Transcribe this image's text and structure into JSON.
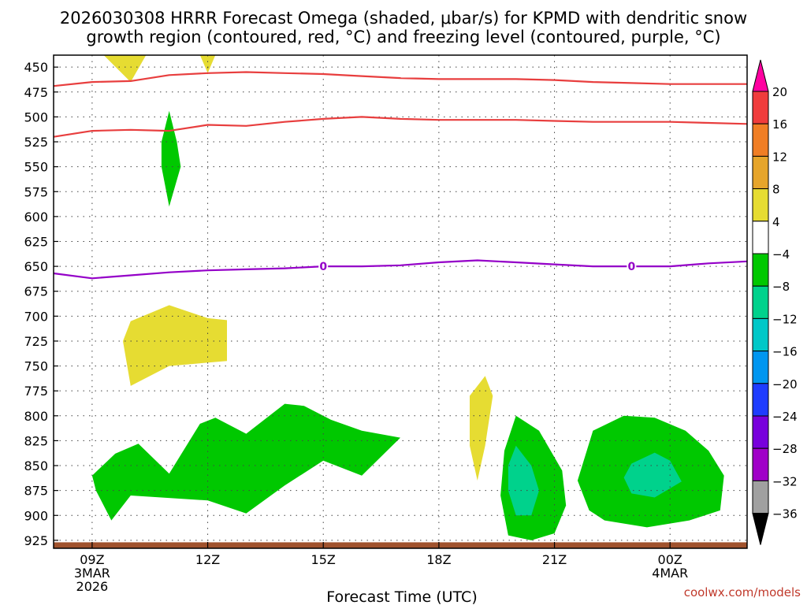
{
  "chart_data": {
    "type": "heatmap",
    "title_line1": "2026030308 HRRR Forecast Omega (shaded, μbar/s) for KPMD with dendritic snow",
    "title_line2": "growth region (contoured, red, °C) and freezing level (contoured, purple, °C)",
    "xlabel": "Forecast Time (UTC)",
    "credit": "coolwx.com/models",
    "xlim": [
      8.0,
      26.0
    ],
    "ylim": [
      438,
      933
    ],
    "x_ticks": [
      {
        "x": 9,
        "lines": [
          "09Z",
          "3MAR",
          "2026"
        ]
      },
      {
        "x": 12,
        "lines": [
          "12Z"
        ]
      },
      {
        "x": 15,
        "lines": [
          "15Z"
        ]
      },
      {
        "x": 18,
        "lines": [
          "18Z"
        ]
      },
      {
        "x": 21,
        "lines": [
          "21Z"
        ]
      },
      {
        "x": 24,
        "lines": [
          "00Z",
          "4MAR"
        ]
      }
    ],
    "y_ticks": [
      450,
      475,
      500,
      525,
      550,
      575,
      600,
      625,
      650,
      675,
      700,
      725,
      750,
      775,
      800,
      825,
      850,
      875,
      900,
      925
    ],
    "colorbar": {
      "labels": [
        "20",
        "16",
        "12",
        "8",
        "4",
        "−4",
        "−8",
        "−12",
        "−16",
        "−20",
        "−24",
        "−28",
        "−32",
        "−36"
      ],
      "colors": [
        "#ff00a0",
        "#f03c3c",
        "#f07e25",
        "#e6a52b",
        "#e6dc32",
        "#ffffff",
        "#00c800",
        "#00d28c",
        "#00c8c8",
        "#0096f0",
        "#1e3cff",
        "#7800dc",
        "#a000c8",
        "#a0a0a0",
        "#000000"
      ]
    },
    "series": [
      {
        "name": "dendritic-upper-red",
        "color": "#e83e3e",
        "x": [
          8.0,
          9.0,
          10.0,
          11.0,
          12.0,
          13.0,
          14.0,
          15.0,
          16.0,
          17.0,
          18.0,
          19.0,
          20.0,
          21.0,
          22.0,
          23.0,
          24.0,
          25.0,
          26.0
        ],
        "y": [
          469,
          465,
          464,
          458,
          456,
          455,
          456,
          457,
          459,
          461,
          462,
          462,
          462,
          463,
          465,
          466,
          467,
          467,
          467
        ]
      },
      {
        "name": "dendritic-lower-red",
        "color": "#e83e3e",
        "x": [
          8.0,
          9.0,
          10.0,
          11.0,
          12.0,
          13.0,
          14.0,
          15.0,
          16.0,
          17.0,
          18.0,
          19.0,
          20.0,
          21.0,
          22.0,
          23.0,
          24.0,
          25.0,
          26.0
        ],
        "y": [
          520,
          514,
          513,
          514,
          508,
          509,
          505,
          502,
          500,
          502,
          503,
          503,
          503,
          504,
          505,
          505,
          505,
          506,
          507
        ]
      },
      {
        "name": "freezing-level-purple",
        "color": "#9400c8",
        "x": [
          8.0,
          9.0,
          10.0,
          11.0,
          12.0,
          13.0,
          14.0,
          15.0,
          16.0,
          17.0,
          18.0,
          19.0,
          20.0,
          21.0,
          22.0,
          23.0,
          24.0,
          25.0,
          26.0
        ],
        "y": [
          657,
          662,
          659,
          656,
          654,
          653,
          652,
          650,
          650,
          649,
          646,
          644,
          646,
          648,
          650,
          650,
          650,
          647,
          645
        ],
        "contour_label": "0",
        "label_x": [
          15.0,
          23.0
        ]
      }
    ],
    "regions": [
      {
        "name": "omega-yellow-top-1",
        "level": "4",
        "color": "#e6dc32",
        "points": [
          [
            9.3,
            438
          ],
          [
            10.0,
            465
          ],
          [
            10.4,
            438
          ]
        ]
      },
      {
        "name": "omega-yellow-top-2",
        "level": "4",
        "color": "#e6dc32",
        "points": [
          [
            11.8,
            438
          ],
          [
            12.0,
            456
          ],
          [
            12.2,
            438
          ]
        ]
      },
      {
        "name": "omega-green-upper",
        "level": "-4",
        "color": "#00c800",
        "points": [
          [
            11.0,
            494
          ],
          [
            11.2,
            525
          ],
          [
            11.3,
            550
          ],
          [
            11.0,
            590
          ],
          [
            10.8,
            550
          ],
          [
            10.8,
            525
          ]
        ]
      },
      {
        "name": "omega-yellow-mid",
        "level": "4",
        "color": "#e6dc32",
        "points": [
          [
            10.0,
            705
          ],
          [
            11.0,
            689
          ],
          [
            12.0,
            702
          ],
          [
            12.5,
            704
          ],
          [
            12.5,
            745
          ],
          [
            11.0,
            750
          ],
          [
            10.0,
            770
          ],
          [
            9.8,
            725
          ]
        ]
      },
      {
        "name": "omega-yellow-1920",
        "level": "4",
        "color": "#e6dc32",
        "points": [
          [
            19.2,
            760
          ],
          [
            19.4,
            780
          ],
          [
            19.2,
            830
          ],
          [
            19.0,
            865
          ],
          [
            18.8,
            830
          ],
          [
            18.8,
            780
          ]
        ]
      },
      {
        "name": "omega-green-low-main",
        "level": "-4",
        "color": "#00c800",
        "points": [
          [
            9.0,
            860
          ],
          [
            9.6,
            838
          ],
          [
            10.2,
            828
          ],
          [
            11.0,
            858
          ],
          [
            11.8,
            808
          ],
          [
            12.2,
            802
          ],
          [
            13.0,
            818
          ],
          [
            14.0,
            788
          ],
          [
            14.5,
            790
          ],
          [
            15.2,
            804
          ],
          [
            16.0,
            815
          ],
          [
            17.0,
            822
          ],
          [
            16.0,
            860
          ],
          [
            15.0,
            845
          ],
          [
            14.0,
            870
          ],
          [
            13.0,
            898
          ],
          [
            12.0,
            885
          ],
          [
            10.0,
            880
          ],
          [
            9.5,
            905
          ],
          [
            9.1,
            875
          ]
        ]
      },
      {
        "name": "omega-green-2021",
        "level": "-4",
        "color": "#00c800",
        "points": [
          [
            20.0,
            800
          ],
          [
            20.6,
            815
          ],
          [
            21.2,
            855
          ],
          [
            21.3,
            890
          ],
          [
            21.0,
            918
          ],
          [
            20.4,
            925
          ],
          [
            19.8,
            920
          ],
          [
            19.6,
            880
          ],
          [
            19.7,
            835
          ]
        ]
      },
      {
        "name": "omega-green-23",
        "level": "-4",
        "color": "#00c800",
        "points": [
          [
            22.0,
            815
          ],
          [
            22.8,
            800
          ],
          [
            23.6,
            802
          ],
          [
            24.4,
            815
          ],
          [
            25.0,
            835
          ],
          [
            25.4,
            860
          ],
          [
            25.3,
            895
          ],
          [
            24.5,
            905
          ],
          [
            23.4,
            912
          ],
          [
            22.3,
            905
          ],
          [
            21.9,
            895
          ],
          [
            21.6,
            865
          ]
        ]
      },
      {
        "name": "omega-teal-2021",
        "level": "-8",
        "color": "#00d28c",
        "points": [
          [
            20.0,
            830
          ],
          [
            20.4,
            850
          ],
          [
            20.6,
            875
          ],
          [
            20.4,
            900
          ],
          [
            20.0,
            900
          ],
          [
            19.8,
            875
          ],
          [
            19.8,
            850
          ]
        ]
      },
      {
        "name": "omega-teal-23",
        "level": "-8",
        "color": "#00d28c",
        "points": [
          [
            23.0,
            848
          ],
          [
            23.6,
            837
          ],
          [
            24.0,
            845
          ],
          [
            24.3,
            866
          ],
          [
            23.6,
            882
          ],
          [
            23.0,
            878
          ],
          [
            22.8,
            862
          ]
        ]
      }
    ],
    "terrain": {
      "name": "ground-surface",
      "color": "#a0522d",
      "top": 927
    }
  }
}
